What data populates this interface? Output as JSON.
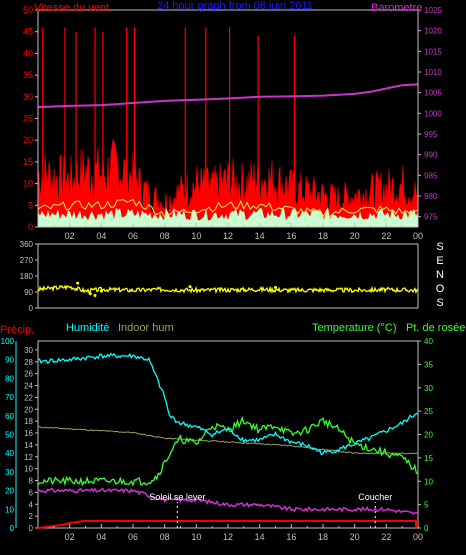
{
  "colors": {
    "background": "#000000",
    "frame": "#c0c0c0",
    "wind_label": "#ff0000",
    "title": "#1a1aff",
    "barometer": "#cc33cc",
    "direction": "#ffff00",
    "humidity": "#00ffff",
    "indoor_hum": "#a0a060",
    "temperature": "#33ff33",
    "dewpoint": "#cc33cc",
    "precip": "#ff0000",
    "sun": "#ffffff"
  },
  "chart_data": [
    {
      "type": "line",
      "panel": "wind-barometer",
      "title": "24 hour graph from 06 juin 2011",
      "ylabel_left": "Vitesse du vent",
      "ylabel_right": "Barometre",
      "x_ticks": [
        "02",
        "04",
        "06",
        "08",
        "10",
        "12",
        "14",
        "16",
        "18",
        "20",
        "22",
        "00"
      ],
      "y_left_ticks": [
        0,
        5,
        10,
        15,
        20,
        25,
        30,
        35,
        40,
        45,
        50
      ],
      "y_left_lim": [
        0,
        50
      ],
      "y_right_ticks": [
        975,
        980,
        985,
        990,
        995,
        1000,
        1005,
        1010,
        1015,
        1020,
        1025
      ],
      "y_right_lim": [
        972.5,
        1025
      ],
      "series": [
        {
          "name": "Barometre",
          "axis": "right",
          "x": [
            0,
            2,
            4,
            6,
            8,
            10,
            12,
            14,
            16,
            18,
            20,
            21,
            22,
            23,
            24
          ],
          "values": [
            1001.5,
            1001.8,
            1002,
            1002.5,
            1003,
            1003.3,
            1003.6,
            1004,
            1004.1,
            1004.3,
            1004.7,
            1005.2,
            1006,
            1006.8,
            1007
          ]
        },
        {
          "name": "Vitesse du vent",
          "axis": "left",
          "x": [
            0,
            1,
            2,
            3,
            4,
            5,
            6,
            7,
            8,
            9,
            10,
            11,
            12,
            13,
            14,
            15,
            16,
            17,
            18,
            19,
            20,
            21,
            22,
            23,
            24
          ],
          "values": [
            15,
            14,
            13,
            16,
            15,
            17,
            14,
            9,
            7,
            10,
            12,
            11,
            13,
            12,
            14,
            13,
            11,
            10,
            9,
            8,
            9,
            10,
            11,
            12,
            9
          ]
        },
        {
          "name": "Vitesse moyenne",
          "axis": "left",
          "x": [
            0,
            2,
            4,
            6,
            8,
            10,
            12,
            14,
            16,
            18,
            20,
            22,
            24
          ],
          "values": [
            4,
            5,
            5,
            6,
            3,
            4,
            5,
            5,
            4,
            3,
            4,
            4,
            3
          ]
        },
        {
          "name": "Rafales",
          "axis": "left",
          "x": [
            0.3,
            1.7,
            2.4,
            3.6,
            4.1,
            5.6,
            6.1,
            9.3,
            10.6,
            12.1,
            13.9,
            16.2
          ],
          "values": [
            46,
            46,
            45,
            46,
            45,
            46,
            46,
            46,
            46,
            46,
            44,
            44
          ]
        }
      ]
    },
    {
      "type": "scatter",
      "panel": "direction",
      "ylabel_right": "SENOS",
      "y_ticks": [
        0,
        90,
        180,
        270,
        360
      ],
      "y_lim": [
        0,
        360
      ],
      "x_ticks": [],
      "series": [
        {
          "name": "Direction",
          "x": [
            0,
            2,
            3,
            4,
            6,
            8,
            10,
            12,
            14,
            16,
            18,
            20,
            22,
            24
          ],
          "values": [
            105,
            120,
            95,
            105,
            100,
            105,
            100,
            102,
            105,
            100,
            102,
            100,
            103,
            100
          ]
        }
      ]
    },
    {
      "type": "line",
      "panel": "humidity-temperature",
      "legend": [
        "Précip.",
        "Humidité",
        "Indoor hum",
        "Temperature (°C)",
        "Pt. de rosée"
      ],
      "x_ticks": [
        "02",
        "04",
        "06",
        "08",
        "10",
        "12",
        "14",
        "16",
        "18",
        "20",
        "22",
        "00"
      ],
      "y_left1_ticks": [
        0,
        10,
        20,
        30,
        40,
        50,
        60,
        70,
        80,
        90,
        100
      ],
      "y_left1_lim": [
        0,
        100
      ],
      "y_left2_ticks": [
        0,
        2,
        4,
        6,
        8,
        10,
        12,
        14,
        16,
        18,
        20,
        22,
        24,
        26,
        28,
        30
      ],
      "y_left2_lim": [
        0,
        31.5
      ],
      "y_right_ticks": [
        0,
        5,
        10,
        15,
        20,
        25,
        30,
        35,
        40
      ],
      "y_right_lim": [
        0,
        40
      ],
      "series": [
        {
          "name": "Humidité",
          "axis": "left1",
          "x": [
            0,
            2,
            4,
            6,
            7,
            7.5,
            8,
            8.3,
            9,
            10,
            11,
            12,
            13,
            14,
            15,
            16,
            17,
            18,
            19,
            20,
            21,
            22,
            23,
            24
          ],
          "values": [
            89,
            90,
            92,
            92,
            90,
            80,
            70,
            60,
            56,
            54,
            50,
            53,
            47,
            47,
            50,
            46,
            44,
            40,
            42,
            45,
            48,
            52,
            56,
            62
          ]
        },
        {
          "name": "Indoor hum",
          "axis": "left1",
          "x": [
            0,
            2,
            4,
            6,
            8,
            10,
            12,
            14,
            16,
            18,
            20,
            22,
            24
          ],
          "values": [
            54,
            53,
            52,
            51,
            48,
            47,
            46,
            45,
            44,
            42,
            40,
            40,
            40
          ]
        },
        {
          "name": "Temperature (°C)",
          "axis": "right",
          "x": [
            0,
            2,
            4,
            6,
            7,
            7.5,
            8,
            8.5,
            9,
            10,
            11,
            12,
            13,
            14,
            15,
            16,
            17,
            18,
            19,
            20,
            21,
            22,
            23,
            24
          ],
          "values": [
            10,
            10,
            10,
            10,
            10,
            11,
            14,
            17,
            19,
            18,
            22,
            21,
            23,
            21,
            22,
            20,
            21,
            23,
            21,
            18,
            17,
            16,
            15,
            12
          ]
        },
        {
          "name": "Pt. de rosée",
          "axis": "right",
          "x": [
            0,
            2,
            4,
            6,
            7,
            8,
            10,
            12,
            14,
            16,
            18,
            20,
            22,
            24
          ],
          "values": [
            8,
            8,
            8,
            8,
            7,
            6,
            6,
            5,
            5,
            4,
            4,
            4,
            4,
            3
          ]
        },
        {
          "name": "Précip.",
          "axis": "left1",
          "x": [
            0,
            0.5,
            1,
            1.5,
            2,
            2.5,
            3,
            24
          ],
          "values": [
            0,
            1,
            2,
            3,
            5,
            6,
            7,
            7
          ]
        }
      ],
      "annotations": [
        {
          "text": "Soleil se lever",
          "x": 8.8
        },
        {
          "text": "Coucher",
          "x": 21.3
        }
      ]
    }
  ]
}
